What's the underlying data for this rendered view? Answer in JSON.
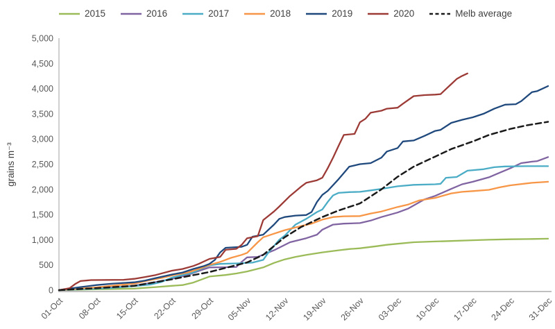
{
  "chart_data": {
    "type": "line",
    "title": "",
    "xlabel": "",
    "ylabel": "grains m⁻³",
    "ylim": [
      0,
      5000
    ],
    "ytick_step": 500,
    "ytick_labels": [
      "0",
      "500",
      "1,000",
      "1,500",
      "2,000",
      "2,500",
      "3,000",
      "3,500",
      "4,000",
      "4,500",
      "5,000"
    ],
    "categories": [
      "01-Oct",
      "08-Oct",
      "15-Oct",
      "22-Oct",
      "29-Oct",
      "05-Nov",
      "12-Nov",
      "19-Nov",
      "26-Nov",
      "03-Dec",
      "10-Dec",
      "17-Dec",
      "24-Dec",
      "31-Dec"
    ],
    "category_days": [
      0,
      7,
      14,
      21,
      28,
      35,
      42,
      49,
      56,
      63,
      70,
      77,
      84,
      91
    ],
    "xlim_days": [
      0,
      91
    ],
    "x_unit": "days since 01-Oct",
    "grid": false,
    "legend_position": "top",
    "axis_color": "#BFBFBF",
    "tick_label_color": "#595959",
    "series": [
      {
        "name": "2015",
        "color": "#9BBB59",
        "style": "solid",
        "points": [
          [
            0,
            0
          ],
          [
            4,
            10
          ],
          [
            7,
            15
          ],
          [
            11,
            25
          ],
          [
            14,
            30
          ],
          [
            16,
            45
          ],
          [
            18,
            60
          ],
          [
            21,
            85
          ],
          [
            23,
            100
          ],
          [
            25,
            150
          ],
          [
            27,
            230
          ],
          [
            28,
            270
          ],
          [
            31,
            300
          ],
          [
            33,
            330
          ],
          [
            35,
            370
          ],
          [
            38,
            450
          ],
          [
            40,
            540
          ],
          [
            42,
            610
          ],
          [
            44,
            660
          ],
          [
            46,
            700
          ],
          [
            49,
            750
          ],
          [
            52,
            790
          ],
          [
            54,
            815
          ],
          [
            56,
            830
          ],
          [
            59,
            870
          ],
          [
            61,
            900
          ],
          [
            63,
            920
          ],
          [
            66,
            950
          ],
          [
            70,
            965
          ],
          [
            73,
            975
          ],
          [
            77,
            990
          ],
          [
            80,
            1000
          ],
          [
            84,
            1010
          ],
          [
            88,
            1015
          ],
          [
            91,
            1020
          ]
        ]
      },
      {
        "name": "2016",
        "color": "#8064A2",
        "style": "solid",
        "points": [
          [
            0,
            0
          ],
          [
            4,
            20
          ],
          [
            7,
            40
          ],
          [
            11,
            60
          ],
          [
            14,
            90
          ],
          [
            18,
            160
          ],
          [
            21,
            225
          ],
          [
            24,
            300
          ],
          [
            26,
            380
          ],
          [
            28,
            450
          ],
          [
            31,
            455
          ],
          [
            33,
            460
          ],
          [
            34,
            560
          ],
          [
            35,
            650
          ],
          [
            37,
            660
          ],
          [
            40,
            790
          ],
          [
            43,
            950
          ],
          [
            46,
            1030
          ],
          [
            48,
            1100
          ],
          [
            49,
            1200
          ],
          [
            51,
            1300
          ],
          [
            53,
            1320
          ],
          [
            56,
            1330
          ],
          [
            58,
            1380
          ],
          [
            60,
            1450
          ],
          [
            63,
            1540
          ],
          [
            65,
            1620
          ],
          [
            68,
            1800
          ],
          [
            70,
            1870
          ],
          [
            73,
            2010
          ],
          [
            75,
            2100
          ],
          [
            77,
            2150
          ],
          [
            80,
            2240
          ],
          [
            82,
            2330
          ],
          [
            84,
            2420
          ],
          [
            86,
            2520
          ],
          [
            88,
            2550
          ],
          [
            89,
            2560
          ],
          [
            91,
            2640
          ]
        ]
      },
      {
        "name": "2017",
        "color": "#4BACC6",
        "style": "solid",
        "points": [
          [
            0,
            0
          ],
          [
            5,
            20
          ],
          [
            7,
            30
          ],
          [
            10,
            45
          ],
          [
            14,
            80
          ],
          [
            17,
            110
          ],
          [
            19,
            160
          ],
          [
            21,
            250
          ],
          [
            23,
            300
          ],
          [
            25,
            350
          ],
          [
            27,
            450
          ],
          [
            28,
            490
          ],
          [
            30,
            520
          ],
          [
            33,
            530
          ],
          [
            36,
            545
          ],
          [
            38,
            600
          ],
          [
            39,
            750
          ],
          [
            41,
            1000
          ],
          [
            42,
            1080
          ],
          [
            44,
            1300
          ],
          [
            46,
            1415
          ],
          [
            48,
            1550
          ],
          [
            49,
            1600
          ],
          [
            50,
            1750
          ],
          [
            51,
            1880
          ],
          [
            52,
            1930
          ],
          [
            54,
            1945
          ],
          [
            56,
            1950
          ],
          [
            58,
            1980
          ],
          [
            60,
            2010
          ],
          [
            63,
            2060
          ],
          [
            66,
            2090
          ],
          [
            70,
            2100
          ],
          [
            71,
            2110
          ],
          [
            72,
            2230
          ],
          [
            74,
            2245
          ],
          [
            76,
            2370
          ],
          [
            79,
            2400
          ],
          [
            81,
            2440
          ],
          [
            83,
            2455
          ],
          [
            87,
            2460
          ],
          [
            91,
            2460
          ]
        ]
      },
      {
        "name": "2018",
        "color": "#F79646",
        "style": "solid",
        "points": [
          [
            0,
            0
          ],
          [
            5,
            40
          ],
          [
            7,
            55
          ],
          [
            10,
            90
          ],
          [
            14,
            130
          ],
          [
            17,
            200
          ],
          [
            19,
            240
          ],
          [
            21,
            290
          ],
          [
            24,
            350
          ],
          [
            26,
            420
          ],
          [
            28,
            500
          ],
          [
            30,
            560
          ],
          [
            32,
            640
          ],
          [
            34,
            700
          ],
          [
            35,
            740
          ],
          [
            37,
            950
          ],
          [
            38,
            1050
          ],
          [
            40,
            1120
          ],
          [
            42,
            1190
          ],
          [
            45,
            1270
          ],
          [
            47,
            1320
          ],
          [
            49,
            1400
          ],
          [
            51,
            1450
          ],
          [
            53,
            1465
          ],
          [
            56,
            1470
          ],
          [
            58,
            1520
          ],
          [
            60,
            1560
          ],
          [
            63,
            1650
          ],
          [
            65,
            1700
          ],
          [
            67,
            1780
          ],
          [
            70,
            1830
          ],
          [
            73,
            1920
          ],
          [
            75,
            1950
          ],
          [
            77,
            1965
          ],
          [
            80,
            1990
          ],
          [
            82,
            2040
          ],
          [
            84,
            2080
          ],
          [
            88,
            2130
          ],
          [
            91,
            2150
          ]
        ]
      },
      {
        "name": "2019",
        "color": "#1F497D",
        "style": "solid",
        "points": [
          [
            0,
            0
          ],
          [
            2,
            30
          ],
          [
            4,
            60
          ],
          [
            7,
            100
          ],
          [
            10,
            130
          ],
          [
            14,
            155
          ],
          [
            16,
            190
          ],
          [
            18,
            240
          ],
          [
            21,
            310
          ],
          [
            23,
            350
          ],
          [
            25,
            420
          ],
          [
            27,
            480
          ],
          [
            28,
            520
          ],
          [
            29,
            600
          ],
          [
            30,
            750
          ],
          [
            31,
            840
          ],
          [
            34,
            860
          ],
          [
            35,
            900
          ],
          [
            36,
            1060
          ],
          [
            38,
            1100
          ],
          [
            40,
            1300
          ],
          [
            41,
            1415
          ],
          [
            42,
            1450
          ],
          [
            44,
            1480
          ],
          [
            46,
            1490
          ],
          [
            47,
            1550
          ],
          [
            48,
            1750
          ],
          [
            49,
            1890
          ],
          [
            50,
            1970
          ],
          [
            52,
            2200
          ],
          [
            54,
            2450
          ],
          [
            56,
            2500
          ],
          [
            58,
            2520
          ],
          [
            60,
            2630
          ],
          [
            61,
            2750
          ],
          [
            63,
            2820
          ],
          [
            64,
            2950
          ],
          [
            66,
            2970
          ],
          [
            68,
            3060
          ],
          [
            70,
            3160
          ],
          [
            71,
            3180
          ],
          [
            73,
            3320
          ],
          [
            75,
            3380
          ],
          [
            77,
            3430
          ],
          [
            79,
            3500
          ],
          [
            81,
            3600
          ],
          [
            83,
            3680
          ],
          [
            85,
            3690
          ],
          [
            86,
            3750
          ],
          [
            88,
            3930
          ],
          [
            89,
            3950
          ],
          [
            91,
            4050
          ]
        ]
      },
      {
        "name": "2020",
        "color": "#9C3A36",
        "style": "solid",
        "points": [
          [
            0,
            0
          ],
          [
            2,
            40
          ],
          [
            3,
            120
          ],
          [
            4,
            180
          ],
          [
            6,
            200
          ],
          [
            12,
            205
          ],
          [
            14,
            225
          ],
          [
            16,
            260
          ],
          [
            18,
            300
          ],
          [
            21,
            385
          ],
          [
            23,
            420
          ],
          [
            25,
            480
          ],
          [
            26,
            520
          ],
          [
            28,
            620
          ],
          [
            30,
            660
          ],
          [
            31,
            800
          ],
          [
            33,
            820
          ],
          [
            34,
            900
          ],
          [
            35,
            1030
          ],
          [
            37,
            1070
          ],
          [
            38,
            1390
          ],
          [
            40,
            1560
          ],
          [
            41,
            1660
          ],
          [
            43,
            1870
          ],
          [
            44,
            1960
          ],
          [
            45,
            2050
          ],
          [
            46,
            2130
          ],
          [
            48,
            2180
          ],
          [
            49,
            2230
          ],
          [
            50,
            2420
          ],
          [
            51,
            2630
          ],
          [
            52,
            2860
          ],
          [
            53,
            3080
          ],
          [
            55,
            3100
          ],
          [
            56,
            3330
          ],
          [
            57,
            3400
          ],
          [
            58,
            3520
          ],
          [
            60,
            3560
          ],
          [
            61,
            3600
          ],
          [
            63,
            3620
          ],
          [
            64,
            3700
          ],
          [
            66,
            3850
          ],
          [
            68,
            3870
          ],
          [
            70,
            3880
          ],
          [
            71,
            3890
          ],
          [
            72,
            3990
          ],
          [
            73,
            4090
          ],
          [
            74,
            4190
          ],
          [
            75,
            4250
          ],
          [
            76,
            4300
          ]
        ]
      },
      {
        "name": "Melb average",
        "color": "#1A1A1A",
        "style": "dashed",
        "points": [
          [
            0,
            0
          ],
          [
            7,
            40
          ],
          [
            14,
            85
          ],
          [
            21,
            215
          ],
          [
            28,
            360
          ],
          [
            35,
            550
          ],
          [
            38,
            700
          ],
          [
            42,
            1050
          ],
          [
            45,
            1250
          ],
          [
            49,
            1450
          ],
          [
            52,
            1580
          ],
          [
            56,
            1720
          ],
          [
            60,
            2000
          ],
          [
            63,
            2250
          ],
          [
            66,
            2450
          ],
          [
            70,
            2650
          ],
          [
            73,
            2800
          ],
          [
            77,
            2950
          ],
          [
            80,
            3080
          ],
          [
            84,
            3200
          ],
          [
            87,
            3270
          ],
          [
            91,
            3340
          ]
        ]
      }
    ]
  }
}
